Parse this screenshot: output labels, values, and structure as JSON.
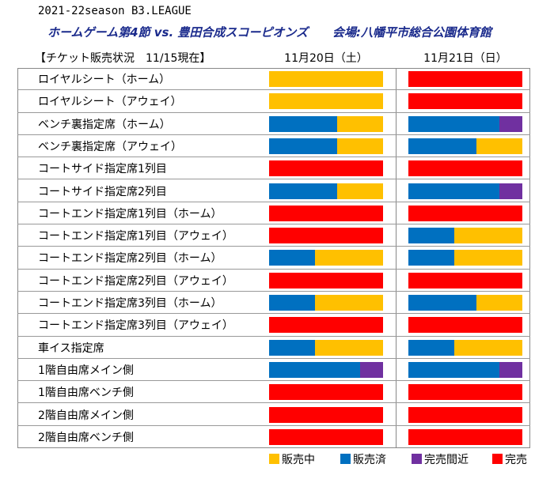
{
  "header": {
    "season": "2021-22season B3.LEAGUE",
    "title": "ホームゲーム第4節 vs. 豊田合成スコーピオンズ",
    "venue": "会場:八幡平市総合公園体育館",
    "status": "【チケット販売状況　11/15現在】",
    "date1": "11月20日（土）",
    "date2": "11月21日（日）"
  },
  "colors": {
    "on_sale": "#ffc000",
    "sold": "#0070c0",
    "almost": "#7030a0",
    "sold_out": "#ff0000"
  },
  "legend": [
    {
      "key": "on_sale",
      "label": "販売中"
    },
    {
      "key": "sold",
      "label": "販売済"
    },
    {
      "key": "almost",
      "label": "完売間近"
    },
    {
      "key": "sold_out",
      "label": "完売"
    }
  ],
  "rows": [
    {
      "label": "ロイヤルシート（ホーム）",
      "d1": [
        {
          "s": "on_sale",
          "v": 100
        }
      ],
      "d2": [
        {
          "s": "sold_out",
          "v": 100
        }
      ]
    },
    {
      "label": "ロイヤルシート（アウェイ）",
      "d1": [
        {
          "s": "on_sale",
          "v": 100
        }
      ],
      "d2": [
        {
          "s": "sold_out",
          "v": 100
        }
      ]
    },
    {
      "label": "ベンチ裏指定席（ホーム）",
      "d1": [
        {
          "s": "sold",
          "v": 60
        },
        {
          "s": "on_sale",
          "v": 40
        }
      ],
      "d2": [
        {
          "s": "sold",
          "v": 80
        },
        {
          "s": "almost",
          "v": 20
        }
      ]
    },
    {
      "label": "ベンチ裏指定席（アウェイ）",
      "d1": [
        {
          "s": "sold",
          "v": 60
        },
        {
          "s": "on_sale",
          "v": 40
        }
      ],
      "d2": [
        {
          "s": "sold",
          "v": 60
        },
        {
          "s": "on_sale",
          "v": 40
        }
      ]
    },
    {
      "label": "コートサイド指定席1列目",
      "d1": [
        {
          "s": "sold_out",
          "v": 100
        }
      ],
      "d2": [
        {
          "s": "sold_out",
          "v": 100
        }
      ]
    },
    {
      "label": "コートサイド指定席2列目",
      "d1": [
        {
          "s": "sold",
          "v": 60
        },
        {
          "s": "on_sale",
          "v": 40
        }
      ],
      "d2": [
        {
          "s": "sold",
          "v": 80
        },
        {
          "s": "almost",
          "v": 20
        }
      ]
    },
    {
      "label": "コートエンド指定席1列目（ホーム）",
      "d1": [
        {
          "s": "sold_out",
          "v": 100
        }
      ],
      "d2": [
        {
          "s": "sold_out",
          "v": 100
        }
      ]
    },
    {
      "label": "コートエンド指定席1列目（アウェイ）",
      "d1": [
        {
          "s": "sold_out",
          "v": 100
        }
      ],
      "d2": [
        {
          "s": "sold",
          "v": 40
        },
        {
          "s": "on_sale",
          "v": 60
        }
      ]
    },
    {
      "label": "コートエンド指定席2列目（ホーム）",
      "d1": [
        {
          "s": "sold",
          "v": 40
        },
        {
          "s": "on_sale",
          "v": 60
        }
      ],
      "d2": [
        {
          "s": "sold",
          "v": 40
        },
        {
          "s": "on_sale",
          "v": 60
        }
      ]
    },
    {
      "label": "コートエンド指定席2列目（アウェイ）",
      "d1": [
        {
          "s": "sold_out",
          "v": 100
        }
      ],
      "d2": [
        {
          "s": "sold_out",
          "v": 100
        }
      ]
    },
    {
      "label": "コートエンド指定席3列目（ホーム）",
      "d1": [
        {
          "s": "sold",
          "v": 40
        },
        {
          "s": "on_sale",
          "v": 60
        }
      ],
      "d2": [
        {
          "s": "sold",
          "v": 60
        },
        {
          "s": "on_sale",
          "v": 40
        }
      ]
    },
    {
      "label": "コートエンド指定席3列目（アウェイ）",
      "d1": [
        {
          "s": "sold_out",
          "v": 100
        }
      ],
      "d2": [
        {
          "s": "sold_out",
          "v": 100
        }
      ]
    },
    {
      "label": "車イス指定席",
      "d1": [
        {
          "s": "sold",
          "v": 40
        },
        {
          "s": "on_sale",
          "v": 60
        }
      ],
      "d2": [
        {
          "s": "sold",
          "v": 40
        },
        {
          "s": "on_sale",
          "v": 60
        }
      ]
    },
    {
      "label": "1階自由席メイン側",
      "d1": [
        {
          "s": "sold",
          "v": 80
        },
        {
          "s": "almost",
          "v": 20
        }
      ],
      "d2": [
        {
          "s": "sold",
          "v": 80
        },
        {
          "s": "almost",
          "v": 20
        }
      ]
    },
    {
      "label": "1階自由席ベンチ側",
      "d1": [
        {
          "s": "sold_out",
          "v": 100
        }
      ],
      "d2": [
        {
          "s": "sold_out",
          "v": 100
        }
      ]
    },
    {
      "label": "2階自由席メイン側",
      "d1": [
        {
          "s": "sold_out",
          "v": 100
        }
      ],
      "d2": [
        {
          "s": "sold_out",
          "v": 100
        }
      ]
    },
    {
      "label": "2階自由席ベンチ側",
      "d1": [
        {
          "s": "sold_out",
          "v": 100
        }
      ],
      "d2": [
        {
          "s": "sold_out",
          "v": 100
        }
      ]
    }
  ]
}
